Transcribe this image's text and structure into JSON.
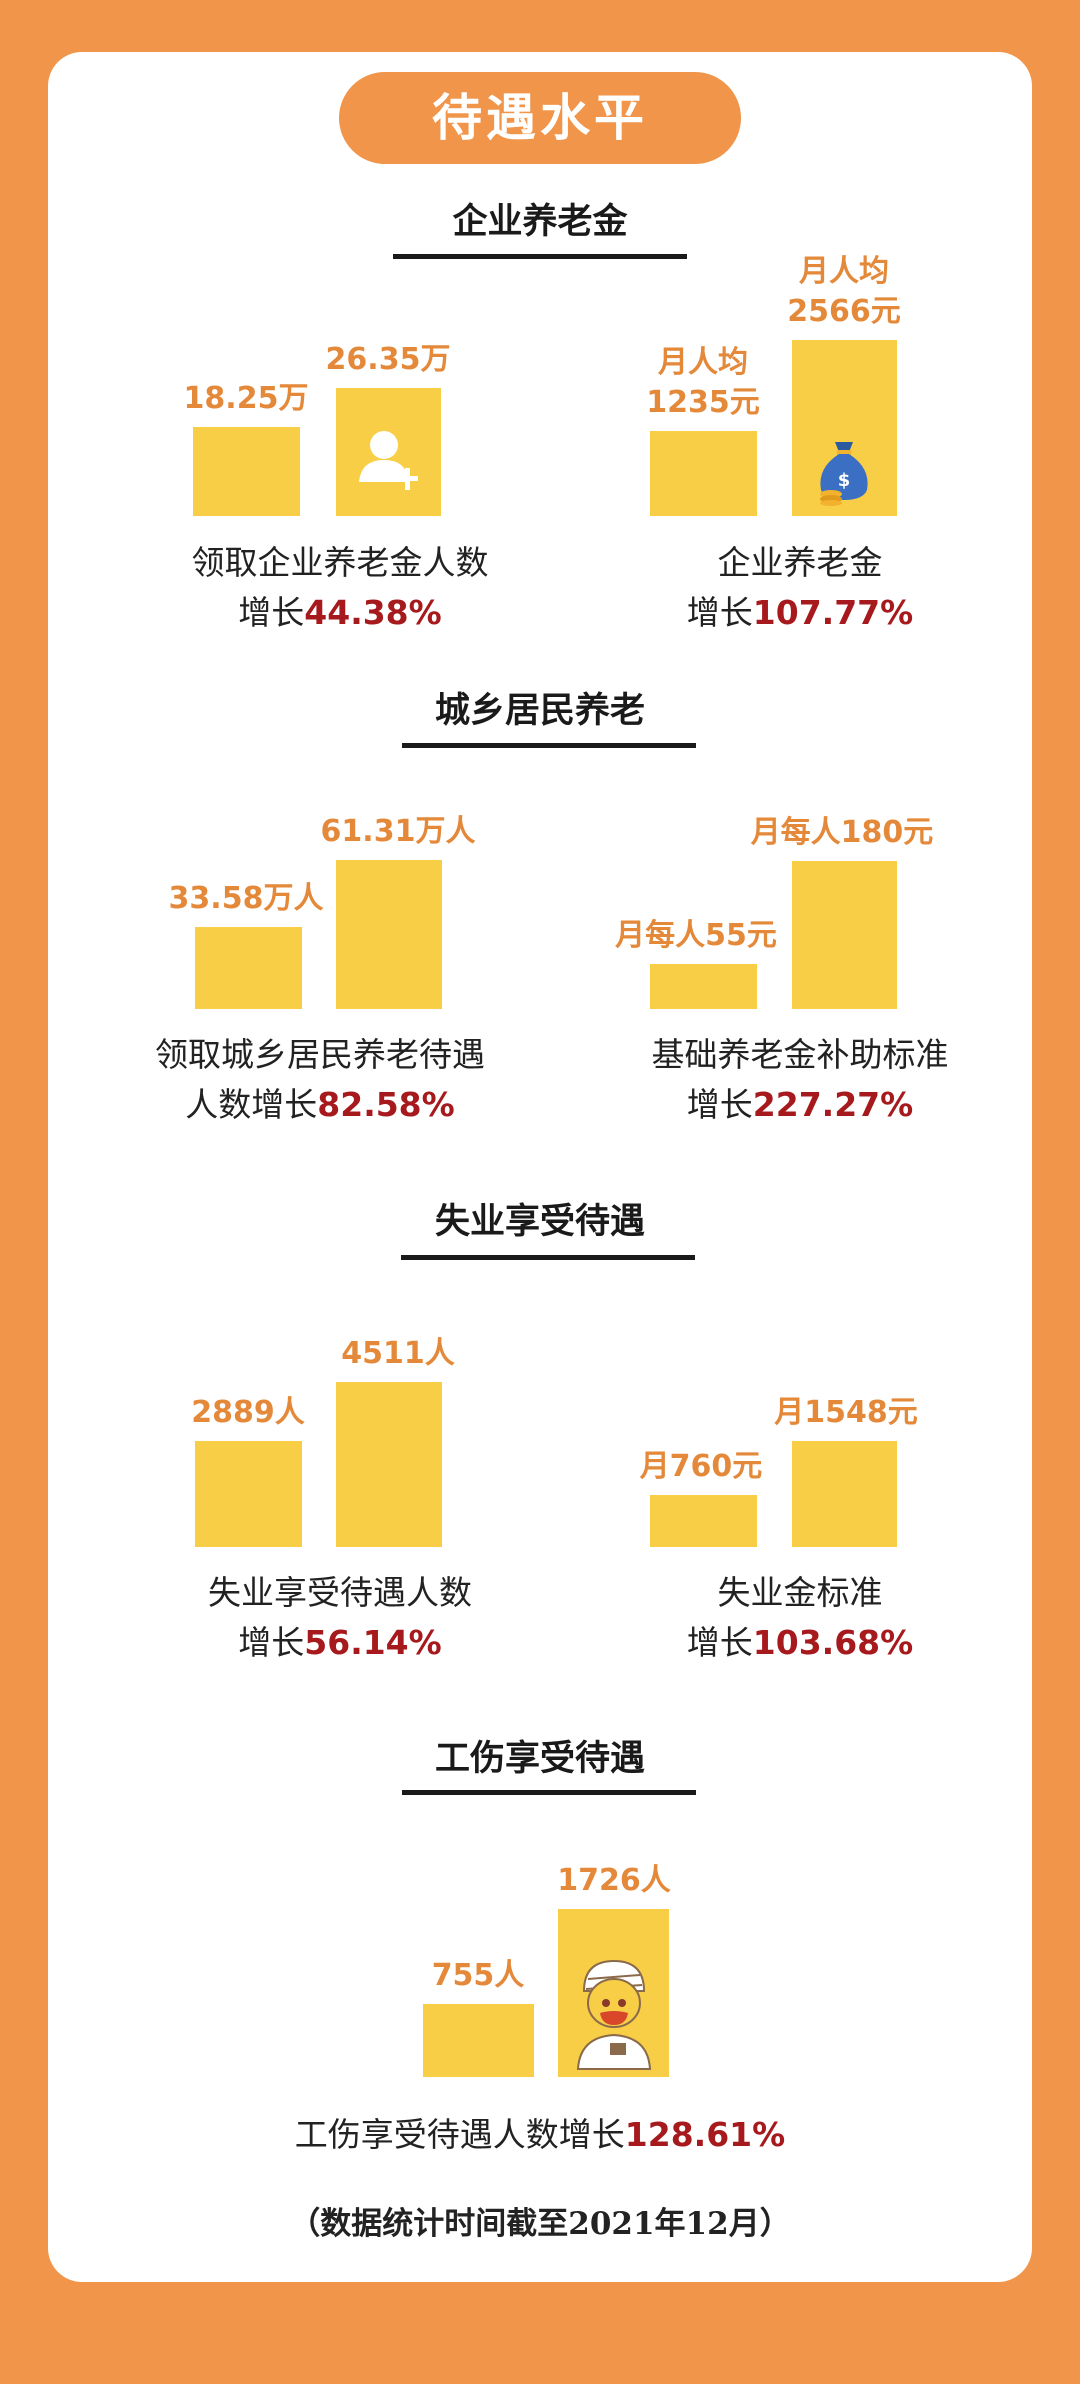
{
  "page_title": "待遇水平",
  "footer": "（数据统计时间截至2021年12月）",
  "colors": {
    "background": "#f0954a",
    "bar": "#f7ce46",
    "value_text": "#e4893a",
    "percent_text": "#a6191c"
  },
  "sections": [
    {
      "title": "企业养老金"
    },
    {
      "title": "城乡居民养老"
    },
    {
      "title": "失业享受待遇"
    },
    {
      "title": "工伤享受待遇"
    }
  ],
  "chart_data": [
    {
      "type": "bar",
      "section": "企业养老金",
      "values": [
        18.25,
        26.35
      ],
      "value_labels": [
        "18.25万",
        "26.35万"
      ],
      "icon": "user-add-icon",
      "caption_line1": "领取企业养老金人数",
      "caption_prefix": "增长",
      "growth": "44.38%"
    },
    {
      "type": "bar",
      "section": "企业养老金",
      "values": [
        1235,
        2566
      ],
      "value_labels": [
        "月人均\n1235元",
        "月人均\n2566元"
      ],
      "icon": "money-bag-icon",
      "caption_line1": "企业养老金",
      "caption_prefix": "增长",
      "growth": "107.77%"
    },
    {
      "type": "bar",
      "section": "城乡居民养老",
      "values": [
        33.58,
        61.31
      ],
      "value_labels": [
        "33.58万人",
        "61.31万人"
      ],
      "caption_line1": "领取城乡居民养老待遇",
      "caption_prefix": "人数增长",
      "growth": "82.58%"
    },
    {
      "type": "bar",
      "section": "城乡居民养老",
      "values": [
        55,
        180
      ],
      "value_labels": [
        "月每人55元",
        "月每人180元"
      ],
      "caption_line1": "基础养老金补助标准",
      "caption_prefix": "增长",
      "growth": "227.27%"
    },
    {
      "type": "bar",
      "section": "失业享受待遇",
      "values": [
        2889,
        4511
      ],
      "value_labels": [
        "2889人",
        "4511人"
      ],
      "caption_line1": "失业享受待遇人数",
      "caption_prefix": "增长",
      "growth": "56.14%"
    },
    {
      "type": "bar",
      "section": "失业享受待遇",
      "values": [
        760,
        1548
      ],
      "value_labels": [
        "月760元",
        "月1548元"
      ],
      "caption_line1": "失业金标准",
      "caption_prefix": "增长",
      "growth": "103.68%"
    },
    {
      "type": "bar",
      "section": "工伤享受待遇",
      "values": [
        755,
        1726
      ],
      "value_labels": [
        "755人",
        "1726人"
      ],
      "icon": "injured-worker-icon",
      "caption_line1": "",
      "caption_prefix": "工伤享受待遇人数增长",
      "growth": "128.61%"
    }
  ]
}
